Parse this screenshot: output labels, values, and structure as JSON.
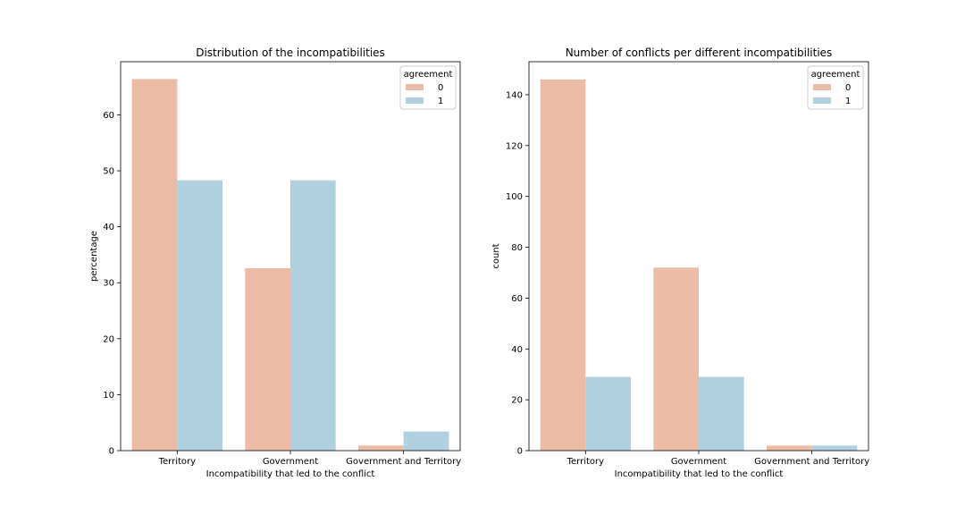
{
  "chart_data": [
    {
      "type": "bar",
      "title": "Distribution of the incompatibilities",
      "xlabel": "Incompatibility that led to the conflict",
      "ylabel": "percentage",
      "categories": [
        "Territory",
        "Government",
        "Government and Territory"
      ],
      "ylim": [
        0,
        69.5
      ],
      "yticks": [
        0,
        10,
        20,
        30,
        40,
        50,
        60
      ],
      "legend": {
        "title": "agreement",
        "placement": "top-right"
      },
      "series": [
        {
          "name": "0",
          "color": "#ebbba6",
          "values": [
            66.4,
            32.6,
            0.9
          ]
        },
        {
          "name": "1",
          "color": "#b0cfdf",
          "values": [
            48.3,
            48.3,
            3.4
          ]
        }
      ],
      "grid": false
    },
    {
      "type": "bar",
      "title": "Number of conflicts per different incompatibilities",
      "xlabel": "Incompatibility that led to the conflict",
      "ylabel": "count",
      "categories": [
        "Territory",
        "Government",
        "Government and Territory"
      ],
      "ylim": [
        0,
        153
      ],
      "yticks": [
        0,
        20,
        40,
        60,
        80,
        100,
        120,
        140
      ],
      "legend": {
        "title": "agreement",
        "placement": "top-right"
      },
      "series": [
        {
          "name": "0",
          "color": "#ebbba6",
          "values": [
            146,
            72,
            2
          ]
        },
        {
          "name": "1",
          "color": "#b0cfdf",
          "values": [
            29,
            29,
            2
          ]
        }
      ],
      "grid": false
    }
  ]
}
